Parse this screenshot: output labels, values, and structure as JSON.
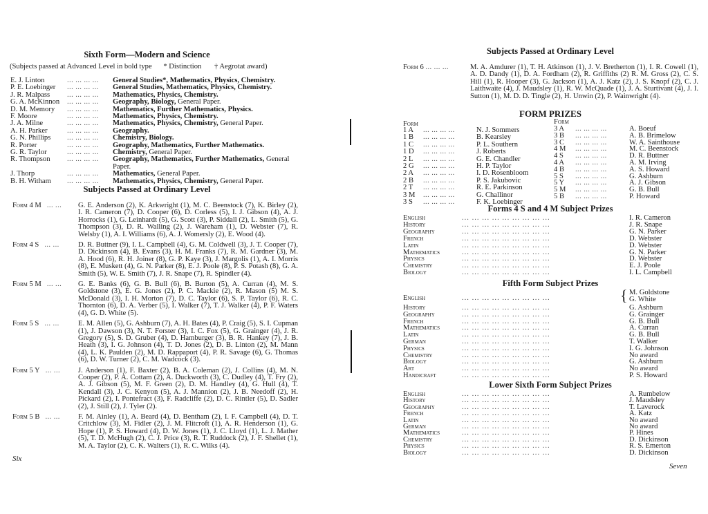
{
  "left_page": {
    "title": "Sixth Form—Modern and Science",
    "legend": {
      "note": "(Subjects passed at Advanced Level in bold type",
      "distinction": "* Distinction",
      "aegrotat": "† Aegrotat award)"
    },
    "leader": "... ... ... ...",
    "advanced": [
      {
        "name": "E. J. Linton",
        "bold": "General Studies*, Mathematics, Physics, Chemistry.",
        "normal": ""
      },
      {
        "name": "P. E. Loebinger",
        "bold": "General Studies, Mathematics, Physics, Chemistry.",
        "normal": ""
      },
      {
        "name": "J. R. Malpass",
        "bold": "Mathematics, Physics, Chemistry.",
        "normal": ""
      },
      {
        "name": "G. A. McKinnon",
        "bold": "Geography, Biology,",
        "normal": " General Paper."
      },
      {
        "name": "D. M. Memory",
        "bold": "Mathematics, Further Mathematics, Physics.",
        "normal": ""
      },
      {
        "name": "F. Moore",
        "bold": "Mathematics, Physics, Chemistry.",
        "normal": ""
      },
      {
        "name": "J. A. Milne",
        "bold": "Mathematics, Physics, Chemistry,",
        "normal": " General Paper."
      },
      {
        "name": "A. H. Parker",
        "bold": "Geography.",
        "normal": ""
      },
      {
        "name": "G. N. Phillips",
        "bold": "Chemistry, Biology.",
        "normal": ""
      },
      {
        "name": "R. Porter",
        "bold": "Geography, Mathematics, Further Mathematics.",
        "normal": ""
      },
      {
        "name": "G. R. Taylor",
        "bold": "Chemistry,",
        "normal": " General Paper."
      },
      {
        "name": "R. Thompson",
        "bold": "Geography, Mathematics, Further Mathematics,",
        "normal": " General Paper."
      },
      {
        "name": "J. Thorp",
        "bold": "Mathematics,",
        "normal": " General Paper."
      },
      {
        "name": "B. H. Witham",
        "bold": "Mathematics, Physics, Chemistry,",
        "normal": " General Paper."
      }
    ],
    "ordinary_title": "Subjects Passed at Ordinary Level",
    "form_leader": "... ...",
    "ordinary": [
      {
        "form": "Form 4 M",
        "text": "G. E. Anderson (2), K. Arkwright (1), M. C. Beenstock (7), K. Birley (2), I. R. Cameron (7), D. Cooper (6), D. Corless (5), I. J. Gibson (4), A. J. Horrocks (1), G. Leinhardt (5), G. Scott (3), P. Siddall (2), L. Smith (5), G. Thompson (3), D. R. Walling (2), J. Wareham (1), D. Webster (7), R. Welsby (1), A. I. Williams (6), A. J. Womersly (2), E. Wood (4)."
      },
      {
        "form": "Form 4 S",
        "text": "D. R. Buttner (9), I. L. Campbell (4), G. M. Coldwell (3), J. T. Cooper (7), D. Dickinson (4), B. Evans (3), H. M. Franks (7), R. M. Gardner (3), M. A. Hood (6), R. H. Joiner (8), G. P. Kaye (3), J. Margolis (1), A. I. Morris (8), E. Muskett (4), G. N. Parker (8), E. J. Poole (8), P. S. Potash (8), G. A. Smith (5), W. E. Smith (7), J. R. Snape (7), R. Spindler (4)."
      },
      {
        "form": "Form 5 M",
        "text": "G. E. Banks (6), G. B. Bull (6), B. Burton (5), A. Curran (4), M. S. Goldstone (3), E. G. Jones (2), P. C. Mackie (2), R. Mason (5) M. S. McDonald (3), I. H. Morton (7), D. C. Taylor (6), S. P. Taylor (6), R. C. Thornton (6), D. A. Verber (5), I. Walker (7), T. J. Walker (4), P. F. Waters (4), G. D. White (5)."
      },
      {
        "form": "Form 5 S",
        "text": "E. M. Allen (5), G. Ashburn (7), A. H. Bates (4), P. Craig (5), S. I. Cupman (1), J. Dawson (3), N. T. Forster (3), I. C. Fox (5), G. Grainger (4), J. R. Gregory (5), S. D. Gruber (4), D. Hamburger (3), B. R. Hankey (7), J. B. Heath (3), I. G. Johnson (4), T. D. Jones (2), D. B. Linton (2), M. Mann (4), L. K. Paulden (2), M. D. Rappaport (4), P. R. Savage (6), G. Thomas (6), D. W. Turner (2), C. M. Wadcock (3)."
      },
      {
        "form": "Form 5 Y",
        "text": "J. Anderson (1), F. Baxter (2), B. A. Coleman (2), J. Collins (4), M. N. Cooper (2), P. A. Cottam (2), A. Duckworth (3), C. Dudley (4), T. Fry (2), A. J. Gibson (5), M. F. Green (2), D. M. Handley (4), G. Hull (4), T. Kendall (3), J. C. Kenyon (5), A. J. Mannion (2), J. B. Needoff (2), H. Pickard (2), I. Pontefract (3), F. Radcliffe (2), D. C. Rintler (5), D. Sadler (2), J. Still (2), J. Tyler (2)."
      },
      {
        "form": "Form 5 B",
        "text": "F. M. Ainley (1), A. Beard (4), D. Bentham (2), I. F. Campbell (4), D. T. Critchlow (3), M. Fidler (2), J. M. Flitcroft (1), A. R. Henderson (1), G. Hope (1), P. S. Howard (4), D. W. Jones (1), J. C. Lloyd (1), L. J. Mather (5), T. D. McHugh (2), C. J. Price (3), R. T. Ruddock (2), J. F. Shellet (1), M. A. Taylor (2), C. K. Walters (1), R. C. Wilks (4)."
      }
    ],
    "page_number": "Six"
  },
  "right_page": {
    "ordinary_title": "Subjects Passed at Ordinary Level",
    "form6": {
      "form": "Form 6",
      "leader": "... ... ...",
      "text": "M. A. Amdurer (1), T. H. Atkinson (1), J. V. Bretherton (1), I. R. Cowell (1), A. D. Dandy (1), D. A. Fordham (2), R. Griffiths (2) R. M. Gross (2), C. S. Hill (1), R. Hooper (3), G. Jackson (1), A. J. Katz (2), J. S. Knopf (2), C. J. Laithwaite (4), J. Maudsley (1), R. W. McQuade (1), J. A. Sturtivant (4), J. I. Sutton (1), M. D. D. Tingle (2), H. Unwin (2), P. Wainwright (4)."
    },
    "form_prizes": {
      "title": "FORM PRIZES",
      "form_header": "Form",
      "leader": "... ... ... ...",
      "left": [
        {
          "form": "1 A",
          "name": "N. J. Sommers"
        },
        {
          "form": "1 B",
          "name": "B. Kearsley"
        },
        {
          "form": "1 C",
          "name": "P. L. Southern"
        },
        {
          "form": "1 D",
          "name": "J. Roberts"
        },
        {
          "form": "2 L",
          "name": "G. E. Chandler"
        },
        {
          "form": "2 G",
          "name": "H. P. Taylor"
        },
        {
          "form": "2 A",
          "name": "I. D. Rosenbloom"
        },
        {
          "form": "2 B",
          "name": "P. S. Jakubovic"
        },
        {
          "form": "2 T",
          "name": "R. E. Parkinson"
        },
        {
          "form": "3 M",
          "name": "G. Challinor"
        },
        {
          "form": "3 S",
          "name": "F. K. Loebinger"
        }
      ],
      "right": [
        {
          "form": "3 A",
          "name": "A. Boeuf"
        },
        {
          "form": "3 B",
          "name": "A. B. Brimelow"
        },
        {
          "form": "3 C",
          "name": "W. A. Sainthouse"
        },
        {
          "form": "4 M",
          "name": "M. C. Beenstock"
        },
        {
          "form": "4 S",
          "name": "D. R. Buttner"
        },
        {
          "form": "4 A",
          "name": "A. M. Irving"
        },
        {
          "form": "4 B",
          "name": "A. S. Howard"
        },
        {
          "form": "5 S",
          "name": "G. Ashburn"
        },
        {
          "form": "5 Y",
          "name": "A. J. Gibson"
        },
        {
          "form": "5 M",
          "name": "G. B. Bull"
        },
        {
          "form": "5 B",
          "name": "P. Howard"
        }
      ]
    },
    "subject_leader": "... ... ... ... ... ... ... ... ...",
    "forms4_prizes": {
      "title": "Forms 4 S and 4 M Subject Prizes",
      "rows": [
        {
          "subject": "English",
          "name": "I. R. Cameron"
        },
        {
          "subject": "History",
          "name": "J. R. Snape"
        },
        {
          "subject": "Geography",
          "name": "G. N. Parker"
        },
        {
          "subject": "French",
          "name": "D. Webster"
        },
        {
          "subject": "Latin",
          "name": "D. Webster"
        },
        {
          "subject": "Mathematics",
          "name": "G. N. Parker"
        },
        {
          "subject": "Physics",
          "name": "D. Webster"
        },
        {
          "subject": "Chemistry",
          "name": "E. J. Poole"
        },
        {
          "subject": "Biology",
          "name": "I. L. Campbell"
        }
      ]
    },
    "fifth_prizes": {
      "title": "Fifth Form Subject Prizes",
      "english": {
        "subject": "English",
        "names": [
          "M. Goldstone",
          "G. White"
        ]
      },
      "rows": [
        {
          "subject": "History",
          "name": "G. Ashburn"
        },
        {
          "subject": "Geography",
          "name": "G. Grainger"
        },
        {
          "subject": "French",
          "name": "G. B. Bull"
        },
        {
          "subject": "Mathematics",
          "name": "A. Curran"
        },
        {
          "subject": "Latin",
          "name": "G. B. Bull"
        },
        {
          "subject": "German",
          "name": "T. Walker"
        },
        {
          "subject": "Physics",
          "name": "I. G. Johnson"
        },
        {
          "subject": "Chemistry",
          "name": "No award"
        },
        {
          "subject": "Biology",
          "name": "G. Ashburn"
        },
        {
          "subject": "Art",
          "name": "No award"
        },
        {
          "subject": "Handicraft",
          "name": "P. S. Howard"
        }
      ]
    },
    "lower_sixth_prizes": {
      "title": "Lower Sixth Form Subject Prizes",
      "rows": [
        {
          "subject": "English",
          "name": "A. Rumbelow"
        },
        {
          "subject": "History",
          "name": "J. Maudsley"
        },
        {
          "subject": "Geography",
          "name": "T. Laverock"
        },
        {
          "subject": "French",
          "name": "A. Katz"
        },
        {
          "subject": "Latin",
          "name": "No award"
        },
        {
          "subject": "German",
          "name": "No award"
        },
        {
          "subject": "Mathematics",
          "name": "P. Hines"
        },
        {
          "subject": "Chemistry",
          "name": "D. Dickinson"
        },
        {
          "subject": "Physics",
          "name": "R. S. Emerton"
        },
        {
          "subject": "Biology",
          "name": "D. Dickinson"
        }
      ]
    },
    "page_number": "Seven"
  }
}
